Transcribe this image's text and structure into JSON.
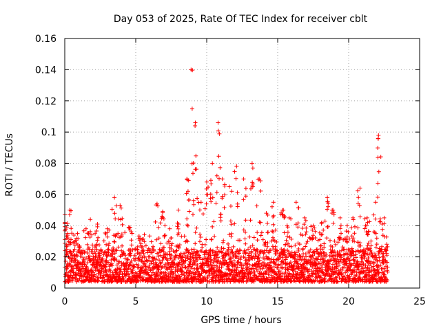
{
  "chart_data": {
    "type": "scatter",
    "title": "Day 053 of 2025, Rate Of TEC Index for receiver cblt",
    "xlabel": "GPS time / hours",
    "ylabel": "ROTI / TECUs",
    "xlim": [
      0,
      25
    ],
    "ylim": [
      0,
      0.16
    ],
    "x_ticks": [
      "0",
      "5",
      "10",
      "15",
      "20",
      "25"
    ],
    "y_ticks": [
      "0",
      "0.02",
      "0.04",
      "0.06",
      "0.08",
      "0.1",
      "0.12",
      "0.14",
      "0.16"
    ],
    "grid": true,
    "marker": "plus",
    "color": "#ff0000",
    "series": [
      {
        "name": "ROTI",
        "x_range": [
          0,
          22.75
        ],
        "baseline_range": [
          0.004,
          0.025
        ],
        "spikes": [
          {
            "x": 0.0,
            "y": 0.047
          },
          {
            "x": 0.2,
            "y": 0.035
          },
          {
            "x": 0.35,
            "y": 0.05
          },
          {
            "x": 0.9,
            "y": 0.035
          },
          {
            "x": 1.5,
            "y": 0.038
          },
          {
            "x": 1.8,
            "y": 0.044
          },
          {
            "x": 2.3,
            "y": 0.041
          },
          {
            "x": 3.0,
            "y": 0.038
          },
          {
            "x": 3.5,
            "y": 0.058
          },
          {
            "x": 3.9,
            "y": 0.053
          },
          {
            "x": 4.6,
            "y": 0.039
          },
          {
            "x": 5.3,
            "y": 0.032
          },
          {
            "x": 6.5,
            "y": 0.054
          },
          {
            "x": 6.9,
            "y": 0.049
          },
          {
            "x": 7.4,
            "y": 0.038
          },
          {
            "x": 8.0,
            "y": 0.05
          },
          {
            "x": 8.6,
            "y": 0.07
          },
          {
            "x": 8.9,
            "y": 0.14
          },
          {
            "x": 9.2,
            "y": 0.106
          },
          {
            "x": 9.6,
            "y": 0.055
          },
          {
            "x": 10.0,
            "y": 0.068
          },
          {
            "x": 10.4,
            "y": 0.08
          },
          {
            "x": 10.8,
            "y": 0.106
          },
          {
            "x": 11.1,
            "y": 0.07
          },
          {
            "x": 11.6,
            "y": 0.065
          },
          {
            "x": 12.1,
            "y": 0.078
          },
          {
            "x": 12.6,
            "y": 0.07
          },
          {
            "x": 13.2,
            "y": 0.08
          },
          {
            "x": 13.7,
            "y": 0.07
          },
          {
            "x": 14.2,
            "y": 0.048
          },
          {
            "x": 14.7,
            "y": 0.055
          },
          {
            "x": 15.4,
            "y": 0.05
          },
          {
            "x": 15.8,
            "y": 0.045
          },
          {
            "x": 16.3,
            "y": 0.055
          },
          {
            "x": 16.9,
            "y": 0.045
          },
          {
            "x": 17.5,
            "y": 0.04
          },
          {
            "x": 18.1,
            "y": 0.042
          },
          {
            "x": 18.5,
            "y": 0.058
          },
          {
            "x": 18.9,
            "y": 0.05
          },
          {
            "x": 19.4,
            "y": 0.045
          },
          {
            "x": 19.9,
            "y": 0.04
          },
          {
            "x": 20.3,
            "y": 0.045
          },
          {
            "x": 20.8,
            "y": 0.064
          },
          {
            "x": 21.3,
            "y": 0.045
          },
          {
            "x": 21.9,
            "y": 0.055
          },
          {
            "x": 22.1,
            "y": 0.098
          },
          {
            "x": 22.5,
            "y": 0.045
          }
        ]
      }
    ]
  }
}
